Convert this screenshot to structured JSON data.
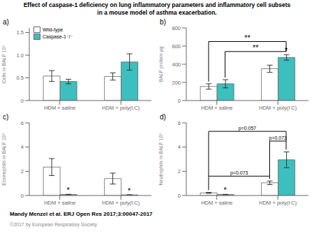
{
  "title": "Effect of caspase-1 deficiency on lung inflammatory parameters and inflammatory cell subsets\nin a mouse model of asthma exacerbation.",
  "annotations": [
    "Mandy Menzel et al. ERJ Open Res 2017;3:00047-2017",
    "©2017 by European Respiratory Society"
  ],
  "chart_data": [
    {
      "type": "bar",
      "title": "a)",
      "y_label": "Cells in BALF 10⁶",
      "categories": [
        "HDM + saline",
        "HDM + poly(I:C)"
      ],
      "series": [
        {
          "name": "Wild-type",
          "color": "#ffffff",
          "values": [
            0.54,
            0.53
          ],
          "errors": [
            0.12,
            0.08
          ]
        },
        {
          "name": "Caspase-1⁻/⁻",
          "color": "#3dbfbf",
          "values": [
            0.42,
            0.85
          ],
          "errors": [
            0.05,
            0.18
          ]
        }
      ],
      "ylim": [
        0,
        1.6
      ],
      "yticks": [
        0,
        0.5,
        {
          "value": 1.0,
          "label": "1.0"
        },
        1.5
      ],
      "grid": false,
      "legend": "upper left"
    },
    {
      "type": "bar",
      "title": "b)",
      "y_label": "BALF protein µg",
      "categories": [
        "HDM + saline",
        "HDM + poly(I:C)"
      ],
      "series": [
        {
          "name": "Wild-type",
          "color": "#ffffff",
          "values": [
            155,
            350
          ],
          "errors": [
            30,
            40
          ]
        },
        {
          "name": "Caspase-1⁻/⁻",
          "color": "#3dbfbf",
          "values": [
            185,
            475
          ],
          "errors": [
            45,
            30
          ]
        }
      ],
      "ylim": [
        0,
        800
      ],
      "yticks": [
        0,
        200,
        400,
        600,
        800
      ],
      "grid": false,
      "annotations": [
        {
          "text": "**",
          "y": 540,
          "from": {
            "series": "Caspase-1⁻/⁻",
            "category": "HDM + saline"
          },
          "to": {
            "series": "Caspase-1⁻/⁻",
            "category": "HDM + poly(I:C)"
          }
        },
        {
          "text": "**",
          "y": 650,
          "from": {
            "series": "Wild-type",
            "category": "HDM + saline"
          },
          "to": {
            "series": "Caspase-1⁻/⁻",
            "category": "HDM + poly(I:C)"
          }
        },
        {
          "text": "*",
          "series": "Caspase-1⁻/⁻",
          "category": "HDM + poly(I:C)"
        }
      ]
    },
    {
      "type": "bar",
      "title": "c)",
      "y_label": "Eosinophils in BALF 10⁵",
      "categories": [
        "HDM + saline",
        "HDM + poly(I:C)"
      ],
      "series": [
        {
          "name": "Wild-type",
          "color": "#ffffff",
          "values": [
            2.35,
            1.4
          ],
          "errors": [
            0.7,
            0.45
          ]
        },
        {
          "name": "Caspase-1⁻/⁻",
          "color": "#3dbfbf",
          "values": [
            0.08,
            0.05
          ],
          "errors": [
            0.02,
            0.01
          ]
        }
      ],
      "ylim": [
        0,
        6
      ],
      "yticks": [
        0,
        2,
        4,
        6
      ],
      "grid": false,
      "annotations": [
        {
          "text": "*",
          "series": "Caspase-1⁻/⁻",
          "category": "HDM + saline"
        },
        {
          "text": "*",
          "series": "Caspase-1⁻/⁻",
          "category": "HDM + poly(I:C)"
        }
      ]
    },
    {
      "type": "bar",
      "title": "d)",
      "y_label": "Neutrophils in BALF 10⁵",
      "categories": [
        "HDM + saline",
        "HDM + poly(I:C)"
      ],
      "series": [
        {
          "name": "Wild-type",
          "color": "#ffffff",
          "values": [
            0.22,
            1.05
          ],
          "errors": [
            0.04,
            0.15
          ]
        },
        {
          "name": "Caspase-1⁻/⁻",
          "color": "#3dbfbf",
          "values": [
            0.08,
            2.95
          ],
          "errors": [
            0.02,
            0.65
          ]
        }
      ],
      "ylim": [
        0,
        6
      ],
      "yticks": [
        0,
        2,
        4,
        6
      ],
      "grid": false,
      "annotations": [
        {
          "text": "*",
          "series": "Caspase-1⁻/⁻",
          "category": "HDM + saline"
        },
        {
          "text": "p=0.073",
          "y": 1.6,
          "from": {
            "series": "Wild-type",
            "category": "HDM + saline"
          },
          "to": {
            "series": "Wild-type",
            "category": "HDM + poly(I:C)"
          }
        },
        {
          "text": "p=0.057",
          "y": 5.3,
          "from": {
            "series": "Wild-type",
            "category": "HDM + saline"
          },
          "to": {
            "series": "Caspase-1⁻/⁻",
            "category": "HDM + poly(I:C)"
          }
        },
        {
          "text": "p=0.073",
          "y": 4.5,
          "from": {
            "series": "Wild-type",
            "category": "HDM + poly(I:C)"
          },
          "to": {
            "series": "Caspase-1⁻/⁻",
            "category": "HDM + poly(I:C)"
          }
        }
      ]
    }
  ]
}
